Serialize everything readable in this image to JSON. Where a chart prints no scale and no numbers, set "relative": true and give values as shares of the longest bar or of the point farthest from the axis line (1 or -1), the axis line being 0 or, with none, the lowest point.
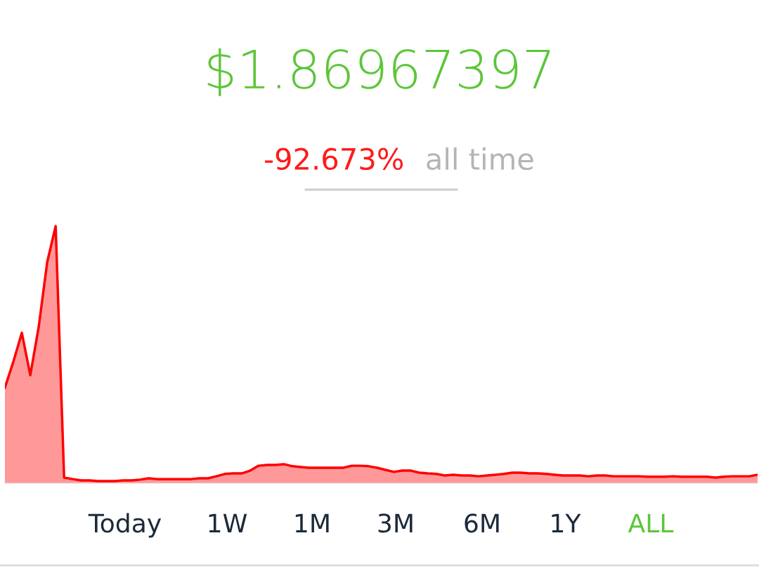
{
  "chart_data": {
    "type": "area",
    "title": "$1.86967397",
    "subtitle": "-92.673%",
    "annotations": [
      "all time",
      "Today",
      "1W",
      "1M",
      "3M",
      "6M",
      "1Y",
      "ALL"
    ],
    "relative": true,
    "grid": false,
    "categories": [
      null,
      null,
      null,
      null,
      null,
      null,
      null,
      null,
      null,
      null,
      null,
      null,
      null,
      null,
      null,
      null,
      null,
      null,
      null,
      null,
      null,
      null,
      null,
      null,
      null,
      null,
      null,
      null,
      null,
      null,
      null,
      null,
      null,
      null,
      null,
      null,
      null,
      null,
      null,
      null,
      null,
      null,
      null,
      null,
      null,
      null,
      null,
      null,
      null,
      null,
      null,
      null,
      null,
      null,
      null,
      null,
      null,
      null,
      null,
      null,
      null,
      null,
      null,
      null,
      null,
      null,
      null,
      null,
      null,
      null,
      null,
      null,
      null,
      null,
      null,
      null,
      null,
      null,
      null,
      null,
      null,
      null,
      null,
      null,
      null,
      null,
      null,
      null,
      null,
      null
    ],
    "series": [
      {
        "color": "#ff0000",
        "values": [
          0.372,
          0.473,
          0.585,
          0.42,
          0.609,
          0.86,
          1.0,
          0.022,
          0.016,
          0.011,
          0.011,
          0.008,
          0.008,
          0.008,
          0.011,
          0.011,
          0.014,
          0.019,
          0.016,
          0.016,
          0.016,
          0.016,
          0.016,
          0.019,
          0.019,
          0.027,
          0.036,
          0.038,
          0.038,
          0.049,
          0.068,
          0.071,
          0.071,
          0.074,
          0.066,
          0.063,
          0.06,
          0.06,
          0.06,
          0.06,
          0.06,
          0.068,
          0.068,
          0.066,
          0.06,
          0.052,
          0.044,
          0.049,
          0.049,
          0.041,
          0.038,
          0.036,
          0.03,
          0.033,
          0.03,
          0.03,
          0.027,
          0.03,
          0.033,
          0.036,
          0.041,
          0.041,
          0.038,
          0.038,
          0.036,
          0.033,
          0.03,
          0.03,
          0.03,
          0.027,
          0.03,
          0.03,
          0.027,
          0.027,
          0.027,
          0.027,
          0.025,
          0.025,
          0.025,
          0.027,
          0.025,
          0.025,
          0.025,
          0.025,
          0.022,
          0.025,
          0.027,
          0.027,
          0.027,
          0.033
        ]
      }
    ]
  }
}
